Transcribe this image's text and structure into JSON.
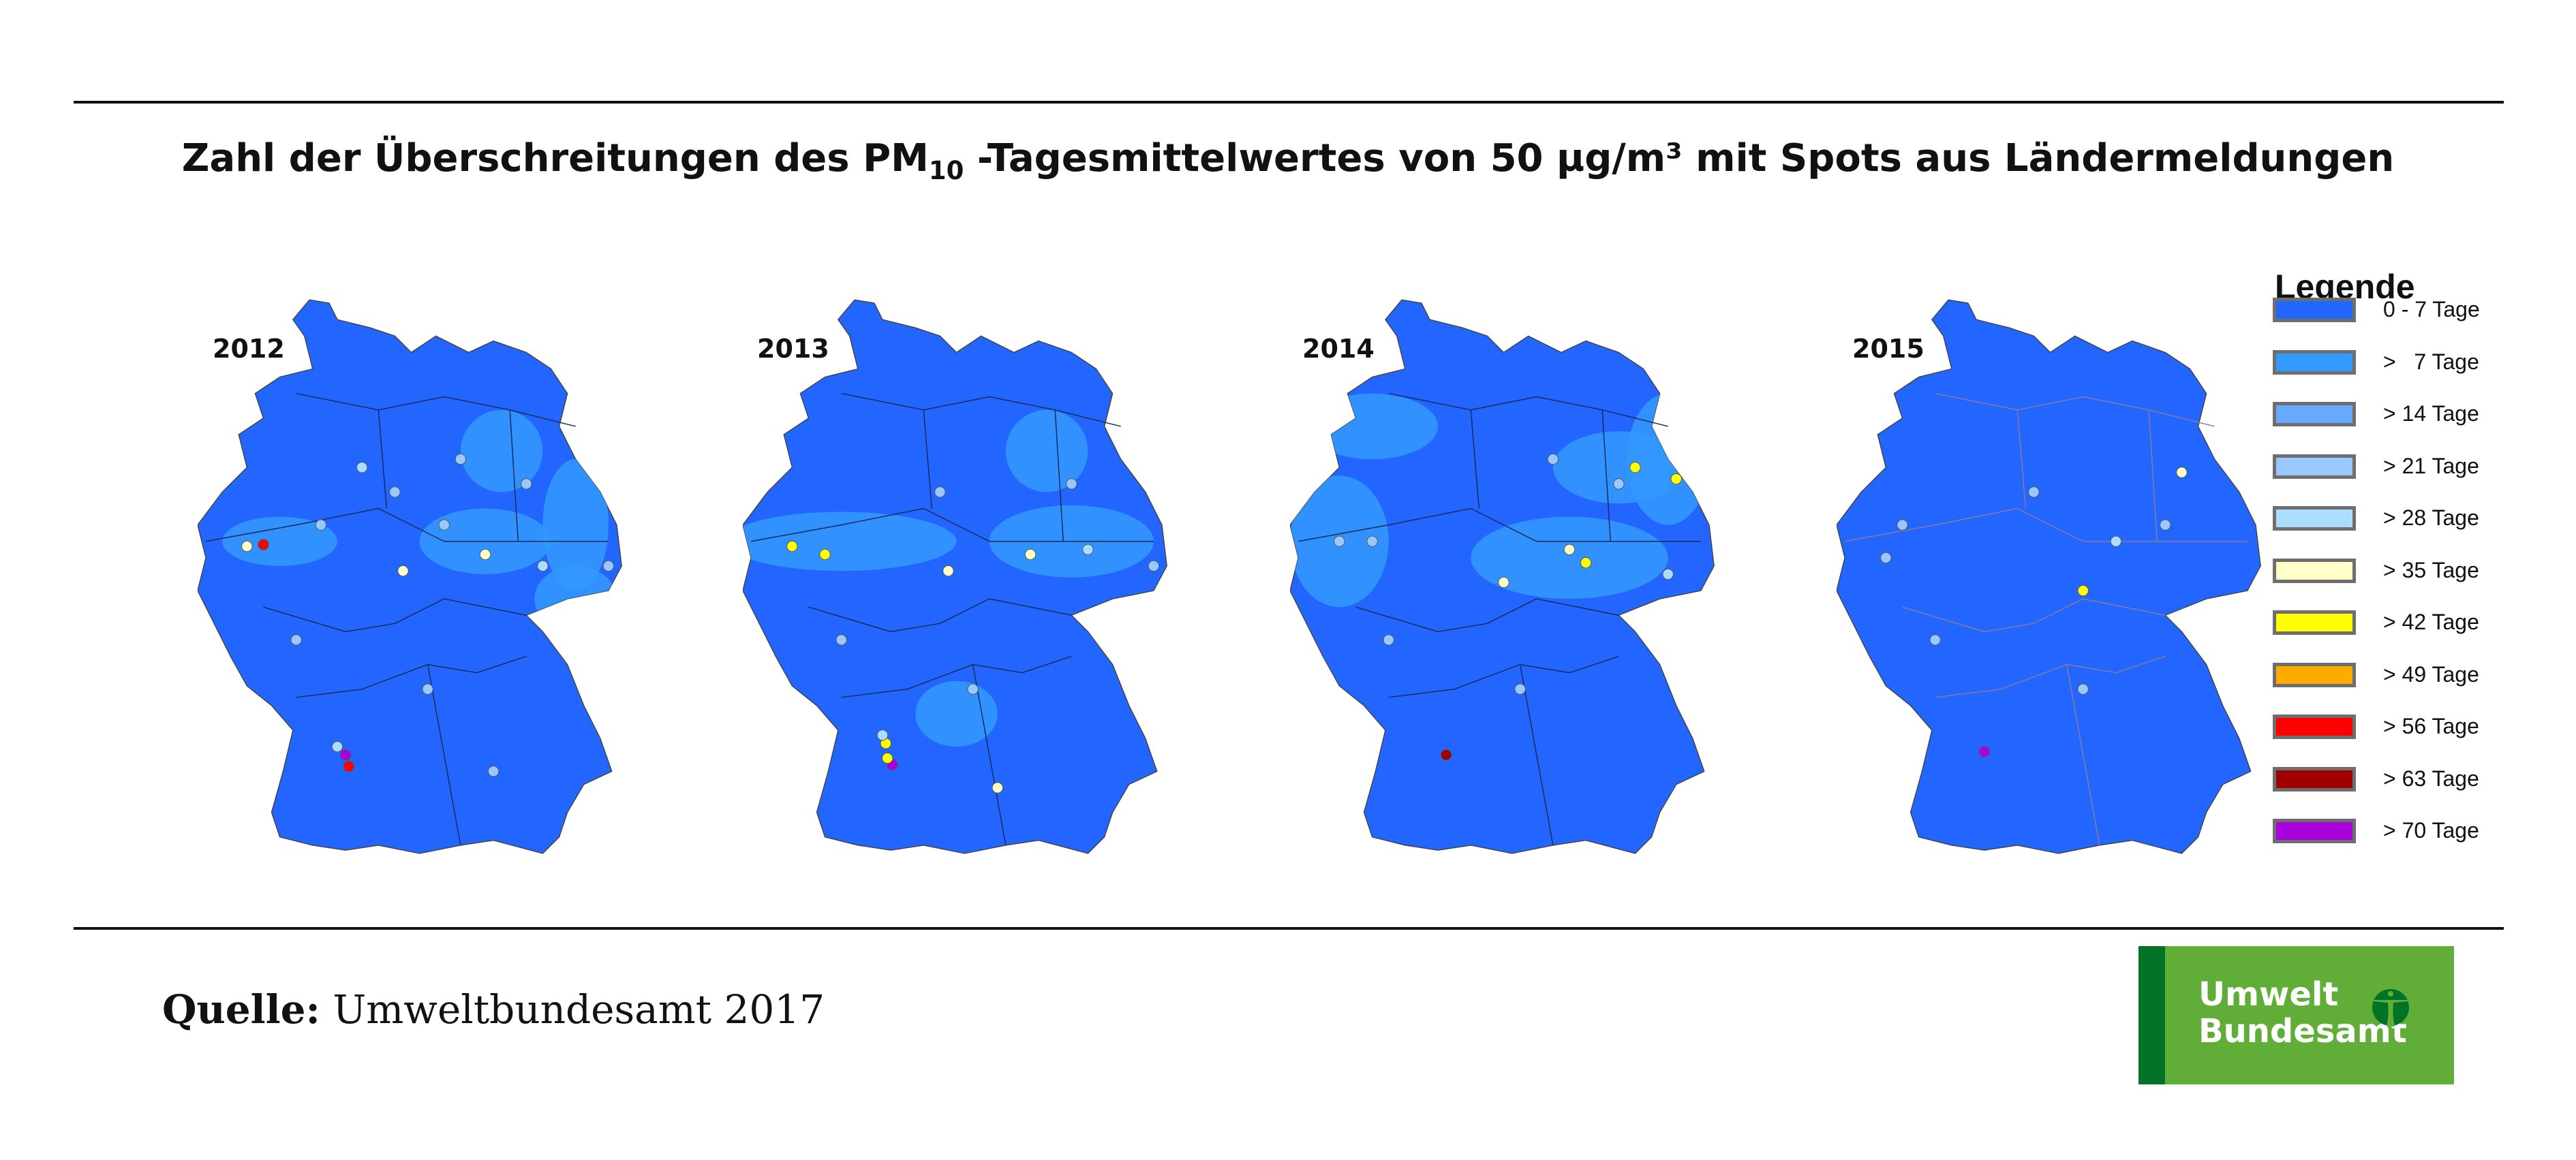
{
  "title": {
    "prefix": "Zahl der Überschreitungen des PM",
    "subscript": "10",
    "suffix": " -Tagesmittelwertes von 50 µg/m³ mit Spots aus Ländermeldungen"
  },
  "chart_data": {
    "type": "choropleth-map",
    "title": "Zahl der Überschreitungen des PM10-Tagesmittelwertes von 50 µg/m³ mit Spots aus Ländermeldungen",
    "panels": [
      {
        "year": "2012",
        "max_spot_class": "> 70 Tage"
      },
      {
        "year": "2013",
        "max_spot_class": "> 70 Tage"
      },
      {
        "year": "2014",
        "max_spot_class": "> 63 Tage"
      },
      {
        "year": "2015",
        "max_spot_class": "> 70 Tage"
      }
    ],
    "legend": {
      "title": "Legende",
      "placement": "right",
      "classes": [
        {
          "label": "0 - 7 Tage",
          "color": "#2266ff"
        },
        {
          "label": ">   7 Tage",
          "color": "#3399ff"
        },
        {
          "label": "> 14 Tage",
          "color": "#66aaff"
        },
        {
          "label": "> 21 Tage",
          "color": "#99c8ff"
        },
        {
          "label": "> 28 Tage",
          "color": "#aaddff"
        },
        {
          "label": "> 35 Tage",
          "color": "#ffffc8"
        },
        {
          "label": "> 42 Tage",
          "color": "#ffff00"
        },
        {
          "label": "> 49 Tage",
          "color": "#ffaa00"
        },
        {
          "label": "> 56 Tage",
          "color": "#ff0000"
        },
        {
          "label": "> 63 Tage",
          "color": "#a00000"
        },
        {
          "label": "> 70 Tage",
          "color": "#aa00dd"
        }
      ]
    }
  },
  "source": {
    "label": "Quelle:",
    "text": " Umweltbundesamt 2017"
  },
  "logo": {
    "line1": "Umwelt",
    "line2": "Bundesamt"
  }
}
